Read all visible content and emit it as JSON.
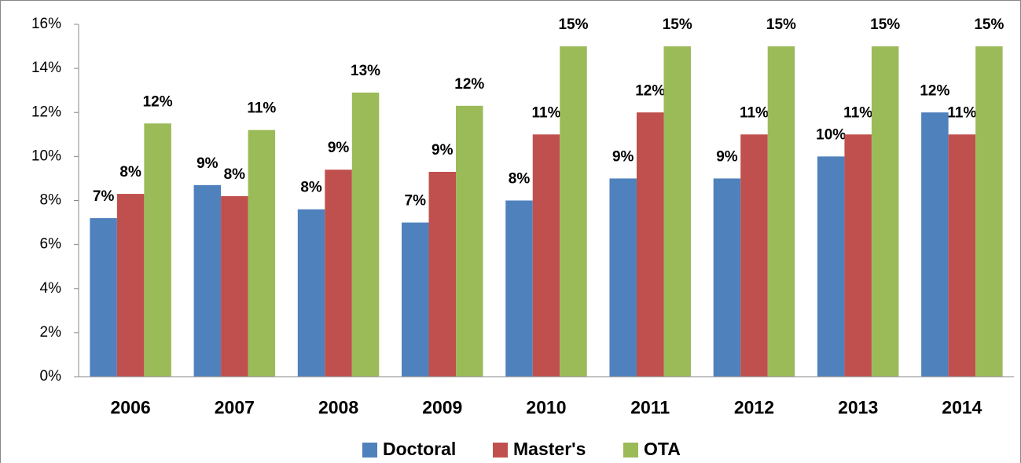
{
  "chart_data": {
    "type": "bar",
    "categories": [
      "2006",
      "2007",
      "2008",
      "2009",
      "2010",
      "2011",
      "2012",
      "2013",
      "2014"
    ],
    "series": [
      {
        "name": "Doctoral",
        "color": "#4f81bd",
        "values": [
          7.2,
          8.7,
          7.6,
          7.0,
          8.0,
          9.0,
          9.0,
          10.0,
          12.0
        ],
        "value_labels": [
          "7%",
          "9%",
          "8%",
          "7%",
          "8%",
          "9%",
          "9%",
          "10%",
          "12%"
        ]
      },
      {
        "name": "Master's",
        "color": "#c0504d",
        "values": [
          8.3,
          8.2,
          9.4,
          9.3,
          11.0,
          12.0,
          11.0,
          11.0,
          11.0
        ],
        "value_labels": [
          "8%",
          "8%",
          "9%",
          "9%",
          "11%",
          "12%",
          "11%",
          "11%",
          "11%"
        ]
      },
      {
        "name": "OTA",
        "color": "#9bbb59",
        "values": [
          11.5,
          11.2,
          12.9,
          12.3,
          15.0,
          15.0,
          15.0,
          15.0,
          15.0
        ],
        "value_labels": [
          "12%",
          "11%",
          "13%",
          "12%",
          "15%",
          "15%",
          "15%",
          "15%",
          "15%"
        ]
      }
    ],
    "ylim": [
      0,
      16
    ],
    "yticks": [
      {
        "value": 0,
        "label": "0%"
      },
      {
        "value": 2,
        "label": "2%"
      },
      {
        "value": 4,
        "label": "4%"
      },
      {
        "value": 6,
        "label": "6%"
      },
      {
        "value": 8,
        "label": "8%"
      },
      {
        "value": 10,
        "label": "10%"
      },
      {
        "value": 12,
        "label": "12%"
      },
      {
        "value": 14,
        "label": "14%"
      },
      {
        "value": 16,
        "label": "16%"
      }
    ],
    "legend": "bottom",
    "grid": false
  }
}
